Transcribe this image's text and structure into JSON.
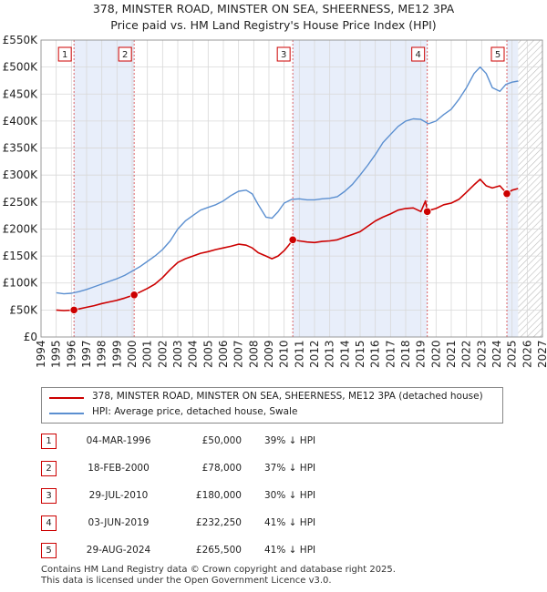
{
  "header": {
    "title_line1": "378, MINSTER ROAD, MINSTER ON SEA, SHEERNESS, ME12 3PA",
    "title_line2": "Price paid vs. HM Land Registry's House Price Index (HPI)"
  },
  "colors": {
    "property": "#cc0000",
    "hpi": "#5b8fd0",
    "shade": "#e8eefa",
    "grid": "#d8d8d8"
  },
  "chart_data": {
    "type": "line",
    "title": "Price paid vs. HM Land Registry's House Price Index (HPI)",
    "xlim": [
      1994,
      2027
    ],
    "ylim": [
      0,
      550000
    ],
    "x_ticks": [
      1994,
      1995,
      1996,
      1997,
      1998,
      1999,
      2000,
      2001,
      2002,
      2003,
      2004,
      2005,
      2006,
      2007,
      2008,
      2009,
      2010,
      2011,
      2012,
      2013,
      2014,
      2015,
      2016,
      2017,
      2018,
      2019,
      2020,
      2021,
      2022,
      2023,
      2024,
      2025,
      2026,
      2027
    ],
    "y_ticks": [
      0,
      50000,
      100000,
      150000,
      200000,
      250000,
      300000,
      350000,
      400000,
      450000,
      500000,
      550000
    ],
    "y_tick_labels": [
      "£0",
      "£50K",
      "£100K",
      "£150K",
      "£200K",
      "£250K",
      "£300K",
      "£350K",
      "£400K",
      "£450K",
      "£500K",
      "£550K"
    ],
    "series": [
      {
        "name": "378, MINSTER ROAD, MINSTER ON SEA, SHEERNESS, ME12 3PA (detached house)",
        "color": "#cc0000",
        "x": [
          1995.0,
          1995.5,
          1996.17,
          1996.5,
          1997.0,
          1997.5,
          1998.0,
          1998.5,
          1999.0,
          1999.5,
          2000.13,
          2000.5,
          2001.0,
          2001.5,
          2002.0,
          2002.5,
          2003.0,
          2003.5,
          2004.0,
          2004.5,
          2005.0,
          2005.5,
          2006.0,
          2006.5,
          2007.0,
          2007.5,
          2007.9,
          2008.3,
          2008.8,
          2009.2,
          2009.6,
          2010.0,
          2010.3,
          2010.57,
          2011.0,
          2011.5,
          2012.0,
          2012.5,
          2013.0,
          2013.5,
          2014.0,
          2014.5,
          2015.0,
          2015.5,
          2016.0,
          2016.5,
          2017.0,
          2017.5,
          2018.0,
          2018.5,
          2019.0,
          2019.3,
          2019.42,
          2019.6,
          2020.0,
          2020.5,
          2021.0,
          2021.5,
          2022.0,
          2022.5,
          2022.9,
          2023.3,
          2023.7,
          2024.2,
          2024.66,
          2025.0,
          2025.4
        ],
        "y": [
          50000,
          49000,
          50000,
          52000,
          55000,
          58000,
          62000,
          65000,
          68000,
          72000,
          78000,
          83000,
          90000,
          98000,
          110000,
          125000,
          138000,
          145000,
          150000,
          155000,
          158000,
          162000,
          165000,
          168000,
          172000,
          170000,
          165000,
          156000,
          150000,
          145000,
          150000,
          160000,
          170000,
          180000,
          178000,
          176000,
          175000,
          177000,
          178000,
          180000,
          185000,
          190000,
          195000,
          205000,
          215000,
          222000,
          228000,
          235000,
          238000,
          239000,
          232250,
          252000,
          232250,
          235000,
          238000,
          245000,
          248000,
          255000,
          268000,
          282000,
          292000,
          280000,
          276000,
          280000,
          265500,
          272000,
          275000
        ]
      },
      {
        "name": "HPI: Average price, detached house, Swale",
        "color": "#5b8fd0",
        "x": [
          1995.0,
          1995.5,
          1996.0,
          1996.5,
          1997.0,
          1997.5,
          1998.0,
          1998.5,
          1999.0,
          1999.5,
          2000.0,
          2000.5,
          2001.0,
          2001.5,
          2002.0,
          2002.5,
          2003.0,
          2003.5,
          2004.0,
          2004.5,
          2005.0,
          2005.5,
          2006.0,
          2006.5,
          2007.0,
          2007.5,
          2007.9,
          2008.3,
          2008.8,
          2009.2,
          2009.6,
          2010.0,
          2010.5,
          2011.0,
          2011.5,
          2012.0,
          2012.5,
          2013.0,
          2013.5,
          2014.0,
          2014.5,
          2015.0,
          2015.5,
          2016.0,
          2016.5,
          2017.0,
          2017.5,
          2018.0,
          2018.5,
          2019.0,
          2019.5,
          2020.0,
          2020.5,
          2021.0,
          2021.5,
          2022.0,
          2022.5,
          2022.9,
          2023.3,
          2023.7,
          2024.2,
          2024.6,
          2025.0,
          2025.4
        ],
        "y": [
          82000,
          80000,
          81000,
          84000,
          88000,
          93000,
          98000,
          103000,
          108000,
          114000,
          122000,
          130000,
          140000,
          150000,
          162000,
          178000,
          200000,
          215000,
          225000,
          235000,
          240000,
          245000,
          252000,
          262000,
          270000,
          272000,
          265000,
          245000,
          222000,
          220000,
          232000,
          248000,
          255000,
          256000,
          254000,
          254000,
          256000,
          257000,
          260000,
          270000,
          283000,
          300000,
          318000,
          338000,
          360000,
          375000,
          390000,
          400000,
          404000,
          403000,
          395000,
          400000,
          412000,
          422000,
          440000,
          462000,
          488000,
          500000,
          488000,
          462000,
          455000,
          468000,
          472000,
          474000
        ]
      }
    ],
    "sales": [
      {
        "label": "1",
        "x": 1996.17,
        "price": 50000
      },
      {
        "label": "2",
        "x": 2000.13,
        "price": 78000
      },
      {
        "label": "3",
        "x": 2010.57,
        "price": 180000
      },
      {
        "label": "4",
        "x": 2019.42,
        "price": 232250
      },
      {
        "label": "5",
        "x": 2024.66,
        "price": 265500
      }
    ],
    "shaded_ranges": [
      [
        1996.17,
        2000.13
      ],
      [
        2010.57,
        2019.42
      ],
      [
        2024.66,
        2025.4
      ]
    ],
    "hatched_from": 2025.4
  },
  "legend": {
    "property_label": "378, MINSTER ROAD, MINSTER ON SEA, SHEERNESS, ME12 3PA (detached house)",
    "hpi_label": "HPI: Average price, detached house, Swale"
  },
  "sales_table": [
    {
      "num": "1",
      "date": "04-MAR-1996",
      "price": "£50,000",
      "hpi": "39% ↓ HPI"
    },
    {
      "num": "2",
      "date": "18-FEB-2000",
      "price": "£78,000",
      "hpi": "37% ↓ HPI"
    },
    {
      "num": "3",
      "date": "29-JUL-2010",
      "price": "£180,000",
      "hpi": "30% ↓ HPI"
    },
    {
      "num": "4",
      "date": "03-JUN-2019",
      "price": "£232,250",
      "hpi": "41% ↓ HPI"
    },
    {
      "num": "5",
      "date": "29-AUG-2024",
      "price": "£265,500",
      "hpi": "41% ↓ HPI"
    }
  ],
  "footer": {
    "line1": "Contains HM Land Registry data © Crown copyright and database right 2025.",
    "line2": "This data is licensed under the Open Government Licence v3.0."
  }
}
